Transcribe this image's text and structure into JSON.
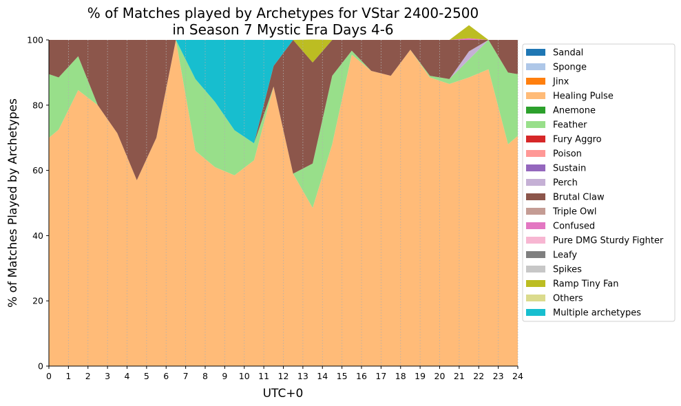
{
  "chart_data": {
    "type": "area",
    "title_line1": "% of Matches played by Archetypes for VStar 2400-2500",
    "title_line2": "in Season 7 Mystic Era Days 4-6",
    "xlabel": "UTC+0",
    "ylabel": "% of Matches Played by Archetypes",
    "xlim": [
      0,
      24
    ],
    "ylim": [
      0,
      100
    ],
    "xticks": [
      "0",
      "1",
      "2",
      "3",
      "4",
      "5",
      "6",
      "7",
      "8",
      "9",
      "10",
      "11",
      "12",
      "13",
      "14",
      "15",
      "16",
      "17",
      "18",
      "19",
      "20",
      "21",
      "22",
      "23",
      "24"
    ],
    "yticks": [
      "0",
      "20",
      "40",
      "60",
      "80",
      "100"
    ],
    "grid": "vertical dotted",
    "legend_position": "right",
    "x": [
      0,
      0.5,
      1.5,
      2.5,
      3.5,
      4.5,
      5.5,
      6.5,
      7.5,
      8.5,
      9.5,
      10.5,
      11.5,
      12.5,
      13.5,
      14.5,
      15.5,
      16.5,
      17.5,
      18.5,
      19.5,
      20.5,
      21.5,
      22.5,
      23.5,
      24
    ],
    "series": [
      {
        "name": "Sandal",
        "color": "#1f77b4",
        "values": [
          0,
          0,
          0,
          0,
          0,
          0,
          0,
          0,
          0,
          0,
          0,
          0,
          0,
          0,
          0,
          0,
          0,
          0,
          0,
          0,
          0,
          0,
          0,
          0,
          0,
          0
        ]
      },
      {
        "name": "Sponge",
        "color": "#aec7e8",
        "values": [
          0,
          0,
          0,
          0,
          0,
          0,
          0,
          0,
          0,
          0,
          0,
          0,
          0,
          0,
          0,
          0,
          0,
          0,
          0,
          0,
          0,
          0,
          0,
          0,
          0,
          0
        ]
      },
      {
        "name": "Jinx",
        "color": "#ff7f0e",
        "values": [
          0,
          0,
          0,
          0,
          0,
          0,
          0,
          0,
          0,
          0,
          0,
          0,
          0,
          0,
          0,
          0,
          0,
          0,
          0,
          0,
          0,
          0,
          0,
          0,
          0,
          0
        ]
      },
      {
        "name": "Healing Pulse",
        "color": "#ffbb78",
        "values": [
          70,
          72.5,
          84.6,
          80,
          71.4,
          57,
          70,
          100,
          66,
          61,
          58.5,
          63.1,
          85.7,
          59,
          48.5,
          68,
          95.5,
          90.5,
          89,
          97,
          88.5,
          86.5,
          88.5,
          91,
          68,
          70.6
        ]
      },
      {
        "name": "Anemone",
        "color": "#2ca02c",
        "values": [
          0,
          0,
          0,
          0,
          0,
          0,
          0,
          0,
          0,
          0,
          0,
          0,
          0,
          0,
          0,
          0,
          0,
          0,
          0,
          0,
          0,
          0,
          0,
          0,
          0,
          0
        ]
      },
      {
        "name": "Feather",
        "color": "#98df8a",
        "values": [
          19.5,
          16,
          10.4,
          0,
          0,
          0,
          0,
          0,
          22,
          20,
          13.8,
          5.2,
          0,
          0,
          13.6,
          21,
          1.2,
          0,
          0,
          0,
          0.5,
          1.5,
          5.5,
          9,
          22,
          18.9
        ]
      },
      {
        "name": "Fury Aggro",
        "color": "#d62728",
        "values": [
          0,
          0,
          0,
          0,
          0,
          0,
          0,
          0,
          0,
          0,
          0,
          0,
          0,
          0,
          0,
          0,
          0,
          0,
          0,
          0,
          0,
          0,
          0,
          0,
          0,
          0
        ]
      },
      {
        "name": "Poison",
        "color": "#ff9896",
        "values": [
          0,
          0,
          0,
          0,
          0,
          0,
          0,
          0,
          0,
          0,
          0,
          0,
          0,
          0,
          0,
          0,
          0,
          0,
          0,
          0,
          0,
          0,
          0,
          0,
          0,
          0
        ]
      },
      {
        "name": "Sustain",
        "color": "#9467bd",
        "values": [
          0,
          0,
          0,
          0,
          0,
          0,
          0,
          0,
          0,
          0,
          0,
          0,
          0,
          0,
          0,
          0,
          0,
          0,
          0,
          0,
          0,
          0,
          0,
          0,
          0,
          0
        ]
      },
      {
        "name": "Perch",
        "color": "#c5b0d5",
        "values": [
          0,
          0,
          0,
          0,
          0,
          0,
          0,
          0,
          0,
          0,
          0,
          0,
          0,
          0,
          0,
          0,
          0,
          0,
          0,
          0,
          0,
          0,
          2.5,
          0,
          0,
          0
        ]
      },
      {
        "name": "Brutal Claw",
        "color": "#8c564b",
        "values": [
          10.5,
          11.5,
          5,
          20,
          28.6,
          43,
          30,
          0,
          0,
          0,
          0,
          0,
          6.3,
          41,
          31,
          11,
          3.3,
          9.5,
          11,
          3,
          11,
          12,
          3.5,
          0,
          10,
          10.5
        ]
      },
      {
        "name": "Triple Owl",
        "color": "#c49c94",
        "values": [
          0,
          0,
          0,
          0,
          0,
          0,
          0,
          0,
          0,
          0,
          0,
          0,
          0,
          0,
          0,
          0,
          0,
          0,
          0,
          0,
          0,
          0,
          0,
          0,
          0,
          0
        ]
      },
      {
        "name": "Confused",
        "color": "#e377c2",
        "values": [
          0,
          0,
          0,
          0,
          0,
          0,
          0,
          0,
          0,
          0,
          0,
          0,
          0,
          0,
          0,
          0,
          0,
          0,
          0,
          0,
          0,
          0,
          0.5,
          0,
          0,
          0
        ]
      },
      {
        "name": "Pure DMG Sturdy Fighter",
        "color": "#f7b6d2",
        "values": [
          0,
          0,
          0,
          0,
          0,
          0,
          0,
          0,
          0,
          0,
          0,
          0,
          0,
          0,
          0,
          0,
          0,
          0,
          0,
          0,
          0,
          0,
          0,
          0,
          0,
          0
        ]
      },
      {
        "name": "Leafy",
        "color": "#7f7f7f",
        "values": [
          0,
          0,
          0,
          0,
          0,
          0,
          0,
          0,
          0,
          0,
          0,
          0,
          0,
          0,
          0,
          0,
          0,
          0,
          0,
          0,
          0,
          0,
          0,
          0,
          0,
          0
        ]
      },
      {
        "name": "Spikes",
        "color": "#c7c7c7",
        "values": [
          0,
          0,
          0,
          0,
          0,
          0,
          0,
          0,
          0,
          0,
          0,
          0,
          0,
          0,
          0,
          0,
          0,
          0,
          0,
          0,
          0,
          0,
          0,
          0,
          0,
          0
        ]
      },
      {
        "name": "Ramp Tiny Fan",
        "color": "#bcbd22",
        "values": [
          0,
          0,
          0,
          0,
          0,
          0,
          0,
          0,
          0,
          0,
          0,
          0,
          0,
          0,
          7,
          0,
          0,
          0,
          0,
          0,
          0,
          0,
          4,
          0,
          0,
          0
        ]
      },
      {
        "name": "Others",
        "color": "#dbdb8d",
        "values": [
          0,
          0,
          0,
          0,
          0,
          0,
          0,
          0,
          0,
          0,
          0,
          0,
          0,
          0,
          0,
          0,
          0,
          0,
          0,
          0,
          0,
          0,
          0,
          0,
          0,
          0
        ]
      },
      {
        "name": "Multiple archetypes",
        "color": "#17becf",
        "values": [
          0,
          0,
          0,
          0,
          0,
          0,
          0,
          0,
          12,
          19,
          27.7,
          31.7,
          8,
          0,
          0,
          0,
          0,
          0,
          0,
          0,
          0,
          0,
          0,
          0,
          0,
          0
        ]
      }
    ]
  }
}
